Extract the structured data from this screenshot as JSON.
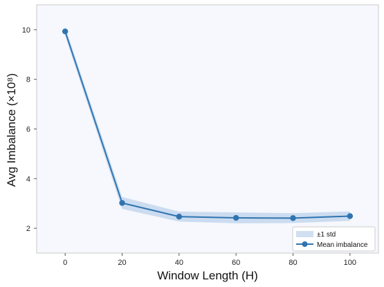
{
  "chart_data": {
    "type": "line",
    "xlabel": "Window Length (H)",
    "ylabel": "Avg Imbalance (×10⁸)",
    "x": [
      0,
      20,
      40,
      60,
      80,
      100
    ],
    "xlim": [
      -10,
      110
    ],
    "ylim": [
      1,
      11
    ],
    "xticks": [
      0,
      20,
      40,
      60,
      80,
      100
    ],
    "yticks": [
      2,
      4,
      6,
      8,
      10
    ],
    "grid": false,
    "legend_position": "bottom-right",
    "series": [
      {
        "name": "Mean imbalance",
        "kind": "line-with-markers",
        "color": "#2f74b0",
        "values": [
          9.93,
          3.02,
          2.47,
          2.42,
          2.41,
          2.49
        ]
      },
      {
        "name": "±1 std",
        "kind": "band",
        "color": "#a9c4e6",
        "lower": [
          9.75,
          2.78,
          2.27,
          2.2,
          2.21,
          2.3
        ],
        "upper": [
          10.11,
          3.26,
          2.67,
          2.64,
          2.61,
          2.68
        ]
      }
    ],
    "legend": [
      "±1 std",
      "Mean imbalance"
    ]
  }
}
